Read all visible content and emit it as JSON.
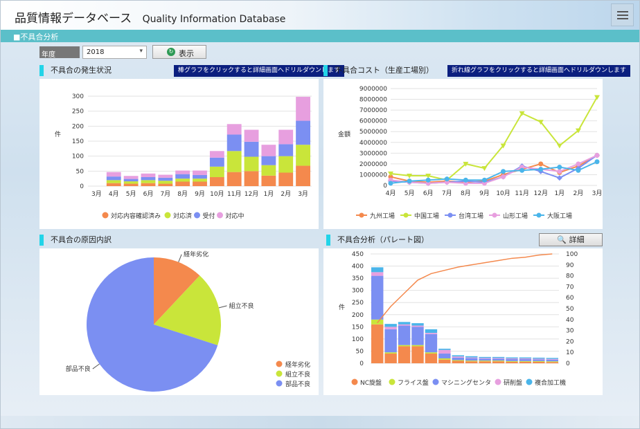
{
  "header": {
    "title_ja": "品質情報データベース",
    "title_en": "Quality Information Database"
  },
  "section": {
    "title": "■不具合分析"
  },
  "toolbar": {
    "year_label": "年度",
    "year_value": "2018",
    "show_label": "表示"
  },
  "colors": {
    "orange": "#f4894d",
    "lime": "#c9e53a",
    "blue": "#7b8ff2",
    "pink": "#e79fdf",
    "sky": "#4ab5ea",
    "accent": "#22d4e8",
    "hint_bg": "#0b1f7f"
  },
  "panels": {
    "occurrence": {
      "title": "不具合の発生状況",
      "hint": "棒グラフをクリックすると詳細画面へドリルダウンします"
    },
    "cost": {
      "title": "不具合コスト（生産工場別）",
      "hint": "折れ線グラフをクリックすると詳細画面へドリルダウンします"
    },
    "cause": {
      "title": "不具合の原因内訳"
    },
    "pareto": {
      "title": "不具合分析（パレート図）",
      "detail_label": "詳細"
    }
  },
  "chart_data": [
    {
      "id": "occurrence",
      "type": "bar",
      "stacked": true,
      "ylabel": "件",
      "ylim": [
        0,
        300
      ],
      "yticks": [
        0,
        50,
        100,
        150,
        200,
        250,
        300
      ],
      "categories": [
        "3月",
        "4月",
        "5月",
        "6月",
        "7月",
        "8月",
        "9月",
        "10月",
        "11月",
        "12月",
        "1月",
        "2月",
        "3月"
      ],
      "series": [
        {
          "name": "対応内容確認済み",
          "color": "#f4894d",
          "values": [
            0,
            10,
            8,
            10,
            8,
            15,
            15,
            30,
            47,
            50,
            35,
            45,
            68
          ]
        },
        {
          "name": "対応済",
          "color": "#c9e53a",
          "values": [
            0,
            10,
            8,
            10,
            10,
            10,
            10,
            35,
            70,
            48,
            35,
            55,
            70
          ]
        },
        {
          "name": "受付",
          "color": "#7b8ff2",
          "values": [
            0,
            12,
            8,
            10,
            10,
            15,
            12,
            30,
            55,
            50,
            30,
            40,
            80
          ]
        },
        {
          "name": "対応中",
          "color": "#e79fdf",
          "values": [
            0,
            15,
            10,
            12,
            10,
            12,
            15,
            22,
            35,
            40,
            38,
            48,
            80
          ]
        }
      ]
    },
    {
      "id": "cost",
      "type": "line",
      "ylabel": "金額",
      "ylim": [
        0,
        9000000
      ],
      "yticks": [
        0,
        1000000,
        2000000,
        3000000,
        4000000,
        5000000,
        6000000,
        7000000,
        8000000,
        9000000
      ],
      "categories": [
        "4月",
        "5月",
        "6月",
        "7月",
        "8月",
        "9月",
        "10月",
        "11月",
        "12月",
        "1月",
        "2月",
        "3月"
      ],
      "series": [
        {
          "name": "九州工場",
          "color": "#f4894d",
          "marker": "circle",
          "values": [
            800000,
            400000,
            300000,
            400000,
            300000,
            400000,
            1000000,
            1500000,
            2000000,
            1200000,
            1800000,
            2800000
          ]
        },
        {
          "name": "中国工場",
          "color": "#c9e53a",
          "marker": "triangle",
          "values": [
            1100000,
            900000,
            900000,
            500000,
            2000000,
            1600000,
            3700000,
            6700000,
            5900000,
            3700000,
            5100000,
            8200000
          ]
        },
        {
          "name": "台湾工場",
          "color": "#7b8ff2",
          "marker": "diamond",
          "values": [
            400000,
            300000,
            200000,
            300000,
            400000,
            300000,
            800000,
            1800000,
            1300000,
            700000,
            1600000,
            2800000
          ]
        },
        {
          "name": "山形工場",
          "color": "#e79fdf",
          "marker": "cross",
          "values": [
            500000,
            300000,
            200000,
            300000,
            200000,
            200000,
            800000,
            1700000,
            1500000,
            1300000,
            2000000,
            2800000
          ]
        },
        {
          "name": "大阪工場",
          "color": "#4ab5ea",
          "marker": "star",
          "values": [
            200000,
            400000,
            500000,
            600000,
            500000,
            500000,
            1300000,
            1400000,
            1500000,
            1700000,
            1400000,
            2200000
          ]
        }
      ]
    },
    {
      "id": "cause",
      "type": "pie",
      "slices": [
        {
          "name": "経年劣化",
          "color": "#f4894d",
          "value": 12
        },
        {
          "name": "組立不良",
          "color": "#c9e53a",
          "value": 18
        },
        {
          "name": "部品不良",
          "color": "#7b8ff2",
          "value": 70
        }
      ]
    },
    {
      "id": "pareto",
      "type": "bar",
      "stacked": true,
      "ylabel": "件",
      "ylim": [
        0,
        450
      ],
      "yticks": [
        0,
        50,
        100,
        150,
        200,
        250,
        300,
        350,
        400,
        450
      ],
      "y2lim": [
        0,
        100
      ],
      "y2ticks": [
        0,
        10,
        20,
        30,
        40,
        50,
        60,
        70,
        80,
        90,
        100
      ],
      "categories": [
        "",
        "",
        "",
        "",
        "",
        "",
        "",
        "",
        "",
        "",
        "",
        "",
        "",
        ""
      ],
      "series": [
        {
          "name": "NC旋盤",
          "color": "#f4894d",
          "values": [
            160,
            40,
            70,
            70,
            40,
            15,
            10,
            8,
            8,
            8,
            6,
            6,
            6,
            5
          ]
        },
        {
          "name": "フライス盤",
          "color": "#c9e53a",
          "values": [
            20,
            5,
            5,
            5,
            5,
            5,
            3,
            3,
            3,
            3,
            3,
            3,
            3,
            3
          ]
        },
        {
          "name": "マシニングセンタ",
          "color": "#7b8ff2",
          "values": [
            180,
            95,
            80,
            75,
            75,
            20,
            10,
            10,
            8,
            8,
            8,
            8,
            7,
            7
          ]
        },
        {
          "name": "研削盤",
          "color": "#e79fdf",
          "values": [
            15,
            10,
            5,
            5,
            5,
            15,
            5,
            3,
            3,
            3,
            3,
            3,
            3,
            3
          ]
        },
        {
          "name": "複合加工機",
          "color": "#4ab5ea",
          "values": [
            20,
            12,
            10,
            10,
            15,
            5,
            5,
            5,
            4,
            4,
            4,
            4,
            4,
            4
          ]
        }
      ],
      "cumulative_percent": [
        37,
        52,
        64,
        76,
        82,
        85,
        88,
        90,
        92,
        94,
        96,
        97,
        99,
        100
      ]
    }
  ]
}
